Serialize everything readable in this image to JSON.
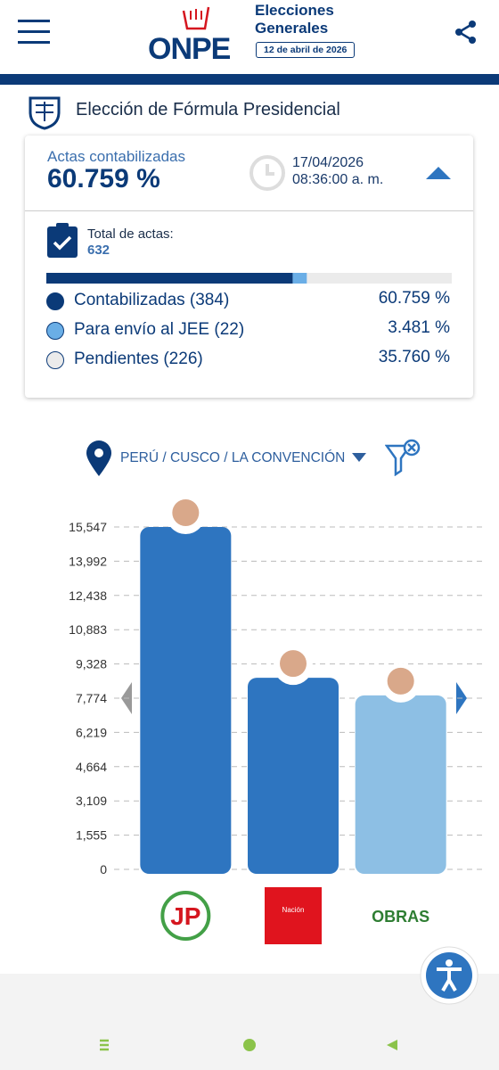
{
  "header": {
    "logo": "ONPE",
    "title_line1": "Elecciones",
    "title_line2": "Generales",
    "date": "12 de abril de 2026"
  },
  "election": "Elección de Fórmula Presidencial",
  "summary": {
    "label": "Actas contabilizadas",
    "percent": "60.759 %",
    "date": "17/04/2026",
    "time": "08:36:00 a. m.",
    "total_label": "Total de actas:",
    "total": "632",
    "status": [
      {
        "label": "Contabilizadas (384)",
        "value": 60.759,
        "value_label": "60.759 %",
        "color": "#0b3a78"
      },
      {
        "label": "Para envío al JEE (22)",
        "value": 3.481,
        "value_label": "3.481 %",
        "color": "#6aaee6"
      },
      {
        "label": "Pendientes (226)",
        "value": 35.76,
        "value_label": "35.760 %",
        "color": "#ebebeb"
      }
    ]
  },
  "location": "PERÚ / CUSCO / LA CONVENCIÓN",
  "chart_data": {
    "type": "bar",
    "categories": [
      "JP",
      "Nación",
      "OBRAS"
    ],
    "values": [
      15547,
      8700,
      7900
    ],
    "colors": [
      "#2e75c0",
      "#2e75c0",
      "#8dbfe4"
    ],
    "ylim": [
      0,
      15547
    ],
    "yticks": [
      0,
      {
        "value": 1555,
        "label": "1,555"
      },
      {
        "value": 3109,
        "label": "3,109"
      },
      {
        "value": 4664,
        "label": "4,664"
      },
      {
        "value": 6219,
        "label": "6,219"
      },
      {
        "value": 7774,
        "label": "7,774"
      },
      {
        "value": 9328,
        "label": "9,328"
      },
      {
        "value": 10883,
        "label": "10,883"
      },
      {
        "value": 12438,
        "label": "12,438"
      },
      {
        "value": 13992,
        "label": "13,992"
      },
      {
        "value": 15547,
        "label": "15,547"
      }
    ],
    "grid": true
  }
}
